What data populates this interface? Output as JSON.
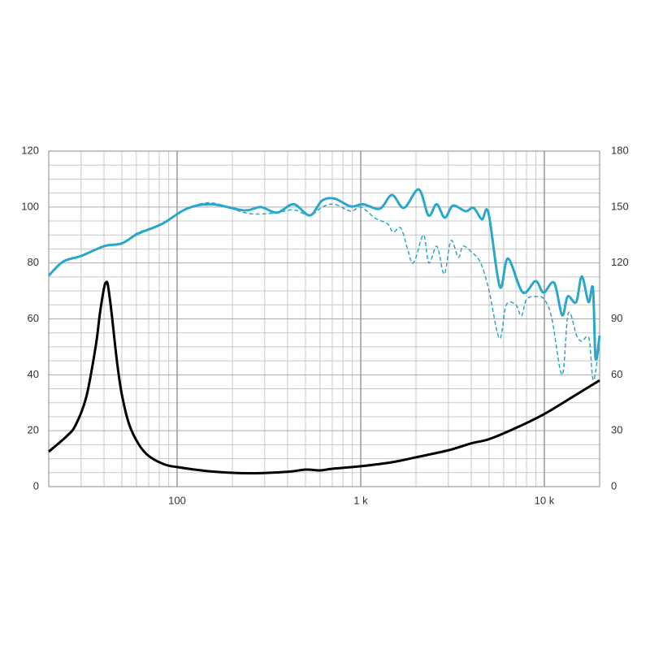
{
  "chart_data": {
    "type": "line",
    "xscale": "log",
    "grid": true,
    "xlim": [
      20,
      20000
    ],
    "xticks": [
      100,
      {
        "value": 1000,
        "label": "1 k"
      },
      {
        "value": 10000,
        "label": "10 k"
      }
    ],
    "ylim": [
      0,
      120
    ],
    "yticks": [
      0,
      20,
      40,
      60,
      80,
      100,
      120
    ],
    "y2lim": [
      0,
      180
    ],
    "y2ticks": [
      0,
      30,
      60,
      90,
      120,
      150,
      180
    ],
    "series": [
      {
        "color": "#2aa7c9",
        "dashed": true,
        "width": 1.5,
        "x": [
          20,
          24,
          30,
          40,
          50,
          61,
          83,
          113,
          154,
          232,
          285,
          350,
          431,
          528,
          616,
          720,
          884,
          1000,
          1200,
          1400,
          1500,
          1650,
          1800,
          1900,
          2000,
          2200,
          2350,
          2600,
          2850,
          3100,
          3400,
          3600,
          4000,
          4500,
          5000,
          5700,
          6200,
          7000,
          7500,
          8000,
          9000,
          10000,
          11000,
          12500,
          13500,
          15000,
          16000,
          17500,
          18500,
          20000
        ],
        "values": [
          75.5,
          80.5,
          82.5,
          86,
          87,
          90.8,
          94,
          99.4,
          101.5,
          98,
          97.5,
          98,
          99,
          97,
          100,
          101,
          98.5,
          100,
          96,
          94,
          91,
          92.5,
          85,
          80,
          82,
          90,
          80,
          86,
          76,
          88,
          82,
          86,
          84,
          80,
          70,
          53,
          65,
          65,
          61,
          67,
          68,
          67,
          60,
          40,
          62,
          54,
          52,
          53,
          38,
          52
        ]
      },
      {
        "color": "#2aa7c9",
        "dashed": false,
        "width": 3,
        "x": [
          20,
          24,
          30,
          40,
          50,
          61,
          83,
          113,
          154,
          232,
          285,
          350,
          431,
          528,
          616,
          720,
          884,
          1030,
          1270,
          1480,
          1720,
          2070,
          2340,
          2590,
          2870,
          3180,
          3720,
          4120,
          4570,
          4960,
          5720,
          6340,
          7620,
          8960,
          9900,
          11300,
          12500,
          13400,
          14900,
          16000,
          17400,
          18400,
          19000,
          20000
        ],
        "values": [
          75.5,
          80.5,
          82.5,
          86,
          87,
          90.4,
          94,
          99.4,
          101,
          98.8,
          100,
          98,
          101,
          97,
          102.3,
          103,
          100.2,
          101,
          99.4,
          104.3,
          99.7,
          106.3,
          97,
          101,
          96.2,
          100.5,
          98.5,
          99.7,
          95.6,
          97.9,
          71.5,
          81.6,
          69.5,
          73.5,
          69.4,
          72.9,
          61.3,
          68,
          66,
          75.2,
          66,
          70.9,
          46,
          54
        ]
      },
      {
        "color": "#000000",
        "dashed": false,
        "width": 3,
        "x": [
          20,
          25,
          28,
          32,
          36,
          38,
          40,
          41,
          42,
          44,
          47,
          50,
          55,
          62,
          70,
          85,
          100,
          150,
          250,
          400,
          500,
          600,
          700,
          1000,
          1500,
          2000,
          3000,
          4000,
          5000,
          7000,
          10000,
          15000,
          20000
        ],
        "values": [
          12.5,
          18,
          22,
          32,
          50,
          62,
          71,
          73,
          72,
          62,
          45,
          33,
          22,
          15,
          11,
          8,
          7,
          5.5,
          4.8,
          5.3,
          6.1,
          5.8,
          6.4,
          7.3,
          8.8,
          10.5,
          13,
          15.5,
          17,
          21,
          26,
          33,
          38
        ]
      }
    ]
  }
}
